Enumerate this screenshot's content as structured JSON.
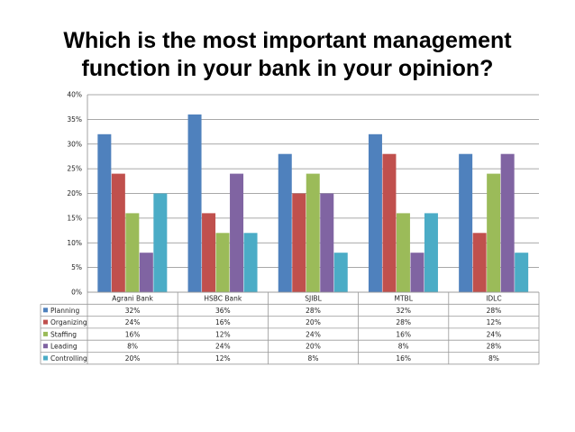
{
  "chart_data": {
    "type": "bar",
    "title_lines": [
      "Which is the most important management",
      "function in your bank in your opinion?"
    ],
    "categories": [
      "Agrani Bank",
      "HSBC Bank",
      "SJIBL",
      "MTBL",
      "IDLC"
    ],
    "series": [
      {
        "name": "Planning",
        "color": "#4f81bd",
        "values": [
          32,
          36,
          28,
          32,
          28
        ],
        "labels": [
          "32%",
          "36%",
          "28%",
          "32%",
          "28%"
        ]
      },
      {
        "name": "Organizing",
        "color": "#c0504d",
        "values": [
          24,
          16,
          20,
          28,
          12
        ],
        "labels": [
          "24%",
          "16%",
          "20%",
          "28%",
          "12%"
        ]
      },
      {
        "name": "Staffing",
        "color": "#9bbb59",
        "values": [
          16,
          12,
          24,
          16,
          24
        ],
        "labels": [
          "16%",
          "12%",
          "24%",
          "16%",
          "24%"
        ]
      },
      {
        "name": "Leading",
        "color": "#8064a2",
        "values": [
          8,
          24,
          20,
          8,
          28
        ],
        "labels": [
          "8%",
          "24%",
          "20%",
          "8%",
          "28%"
        ]
      },
      {
        "name": "Controlling",
        "color": "#4bacc6",
        "values": [
          20,
          12,
          8,
          16,
          8
        ],
        "labels": [
          "20%",
          "12%",
          "8%",
          "16%",
          "8%"
        ]
      }
    ],
    "y_ticks": [
      {
        "value": 0,
        "label": "0%"
      },
      {
        "value": 5,
        "label": "5%"
      },
      {
        "value": 10,
        "label": "10%"
      },
      {
        "value": 15,
        "label": "15%"
      },
      {
        "value": 20,
        "label": "20%"
      },
      {
        "value": 25,
        "label": "25%"
      },
      {
        "value": 30,
        "label": "30%"
      },
      {
        "value": 35,
        "label": "35%"
      },
      {
        "value": 40,
        "label": "40%"
      }
    ],
    "ylim": [
      0,
      40
    ],
    "xlabel": "",
    "ylabel": "",
    "grid": true,
    "legend": "data-table"
  }
}
